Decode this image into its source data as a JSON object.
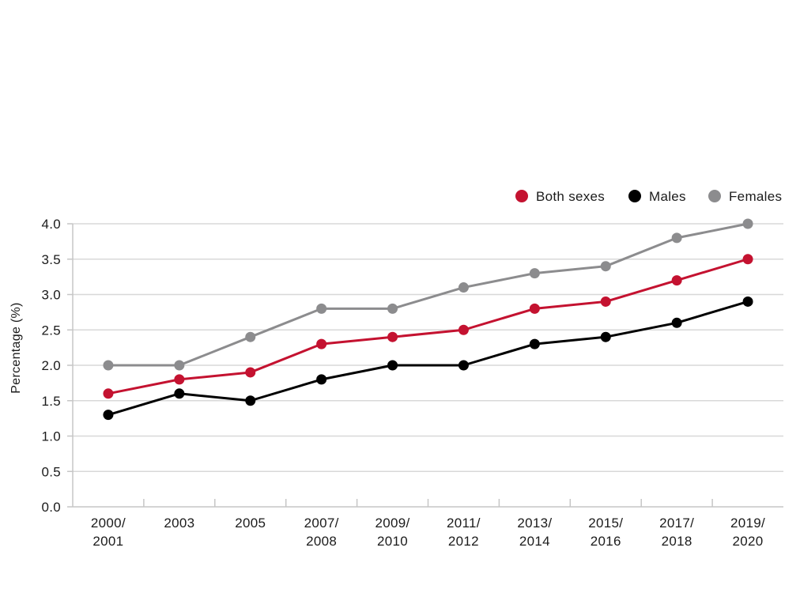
{
  "chart_data": {
    "type": "line",
    "title": "",
    "xlabel": "",
    "ylabel": "Percentage (%)",
    "ylim": [
      0,
      4
    ],
    "ytick_step": 0.5,
    "ytick_labels": [
      "0.0",
      "0.5",
      "1.0",
      "1.5",
      "2.0",
      "2.5",
      "3.0",
      "3.5",
      "4.0"
    ],
    "categories": [
      "2000/2001",
      "2003",
      "2005",
      "2007/2008",
      "2009/2010",
      "2011/2012",
      "2013/2014",
      "2015/2016",
      "2017/2018",
      "2019/2020"
    ],
    "category_label_lines": [
      [
        "2000/",
        "2001"
      ],
      [
        "2003"
      ],
      [
        "2005"
      ],
      [
        "2007/",
        "2008"
      ],
      [
        "2009/",
        "2010"
      ],
      [
        "2011/",
        "2012"
      ],
      [
        "2013/",
        "2014"
      ],
      [
        "2015/",
        "2016"
      ],
      [
        "2017/",
        "2018"
      ],
      [
        "2019/",
        "2020"
      ]
    ],
    "series": [
      {
        "name": "Both sexes",
        "color": "#c41230",
        "values": [
          1.6,
          1.8,
          1.9,
          2.3,
          2.4,
          2.5,
          2.8,
          2.9,
          3.2,
          3.5
        ]
      },
      {
        "name": "Males",
        "color": "#000000",
        "values": [
          1.3,
          1.6,
          1.5,
          1.8,
          2.0,
          2.0,
          2.3,
          2.4,
          2.6,
          2.9
        ]
      },
      {
        "name": "Females",
        "color": "#8c8c8e",
        "values": [
          2.0,
          2.0,
          2.4,
          2.8,
          2.8,
          3.1,
          3.3,
          3.4,
          3.8,
          4.0
        ]
      }
    ],
    "grid": true,
    "legend_position": "top-right",
    "colors": {
      "grid": "#d8d8d8",
      "axis": "#c6c6c6",
      "text": "#1b1b1b"
    }
  }
}
